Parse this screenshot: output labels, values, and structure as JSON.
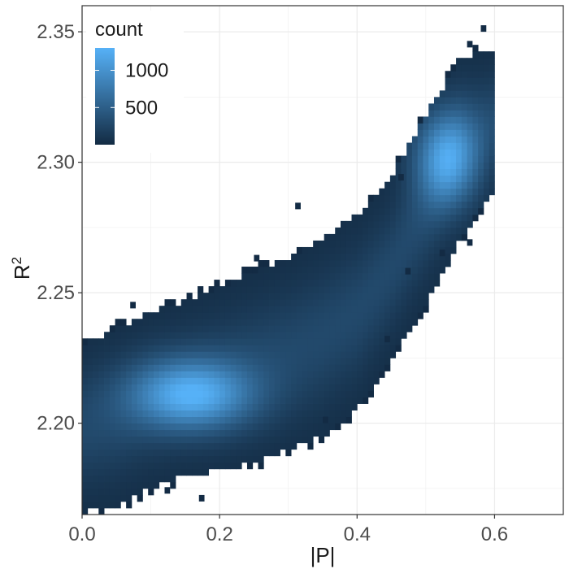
{
  "chart_data": {
    "type": "heatmap",
    "subtype": "2d-histogram",
    "title": "",
    "xlabel": "|P|",
    "ylabel_base": "R",
    "ylabel_superscript": "2",
    "xlim": [
      0.0,
      0.7
    ],
    "ylim": [
      2.165,
      2.36
    ],
    "x_ticks": [
      0.0,
      0.2,
      0.4,
      0.6
    ],
    "x_tick_labels": [
      "0.0",
      "0.2",
      "0.4",
      "0.6"
    ],
    "y_ticks": [
      2.2,
      2.25,
      2.3,
      2.35
    ],
    "y_tick_labels": [
      "2.20",
      "2.25",
      "2.30",
      "2.35"
    ],
    "grid": true,
    "bin_width_x": 0.008,
    "bin_width_y": 0.0025,
    "density_ridge": {
      "description_points": [
        {
          "x": 0.0,
          "y_low": 2.166,
          "y_high": 2.23
        },
        {
          "x": 0.05,
          "y_low": 2.168,
          "y_high": 2.236
        },
        {
          "x": 0.1,
          "y_low": 2.175,
          "y_high": 2.243
        },
        {
          "x": 0.15,
          "y_low": 2.18,
          "y_high": 2.247
        },
        {
          "x": 0.2,
          "y_low": 2.182,
          "y_high": 2.252
        },
        {
          "x": 0.25,
          "y_low": 2.185,
          "y_high": 2.258
        },
        {
          "x": 0.3,
          "y_low": 2.19,
          "y_high": 2.263
        },
        {
          "x": 0.35,
          "y_low": 2.195,
          "y_high": 2.271
        },
        {
          "x": 0.4,
          "y_low": 2.205,
          "y_high": 2.28
        },
        {
          "x": 0.45,
          "y_low": 2.225,
          "y_high": 2.294
        },
        {
          "x": 0.5,
          "y_low": 2.245,
          "y_high": 2.318
        },
        {
          "x": 0.55,
          "y_low": 2.27,
          "y_high": 2.34
        },
        {
          "x": 0.6,
          "y_low": 2.29,
          "y_high": 2.343
        }
      ],
      "peak_1": {
        "x": 0.16,
        "y": 2.211,
        "count": 1300
      },
      "peak_2": {
        "x": 0.53,
        "y": 2.302,
        "count": 1250
      }
    },
    "legend": {
      "title": "count",
      "placement": "top-left-inside",
      "breaks": [
        500,
        1000
      ],
      "break_labels": [
        "500",
        "1000"
      ],
      "range": [
        1,
        1300
      ],
      "color_low": "#132b43",
      "color_high": "#56b1f7"
    }
  }
}
